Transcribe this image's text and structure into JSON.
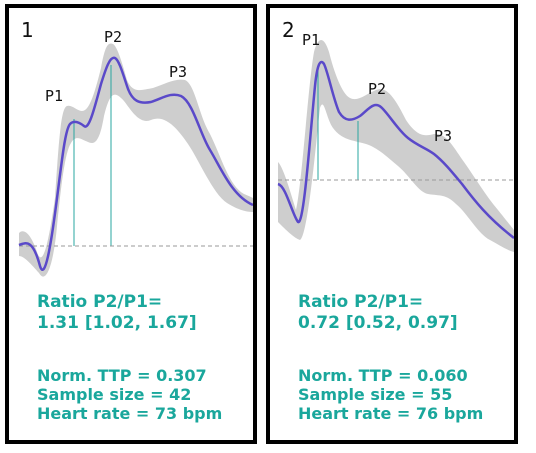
{
  "chart_data": [
    {
      "type": "line",
      "panel_number": "1",
      "peak_labels": [
        "P1",
        "P2",
        "P3"
      ],
      "ratio_title": "Ratio P2/P1=",
      "ratio_value": "1.31 [1.02, 1.67]",
      "metrics": [
        "Norm. TTP = 0.307",
        "Sample size = 42",
        "Heart rate = 73 bpm"
      ]
    },
    {
      "type": "line",
      "panel_number": "2",
      "peak_labels": [
        "P1",
        "P2",
        "P3"
      ],
      "ratio_title": "Ratio P2/P1=",
      "ratio_value": "0.72 [0.52, 0.97]",
      "metrics": [
        "Norm. TTP = 0.060",
        "Sample size = 55",
        "Heart rate = 76 bpm"
      ]
    }
  ],
  "colors": {
    "mean_line": "#5a49c9",
    "confidence_band": "#c9c9c9",
    "marker_line": "#2aa7a0",
    "baseline": "#9a9a9a",
    "stats_text": "#1aa79c",
    "panel_border": "#000000"
  }
}
